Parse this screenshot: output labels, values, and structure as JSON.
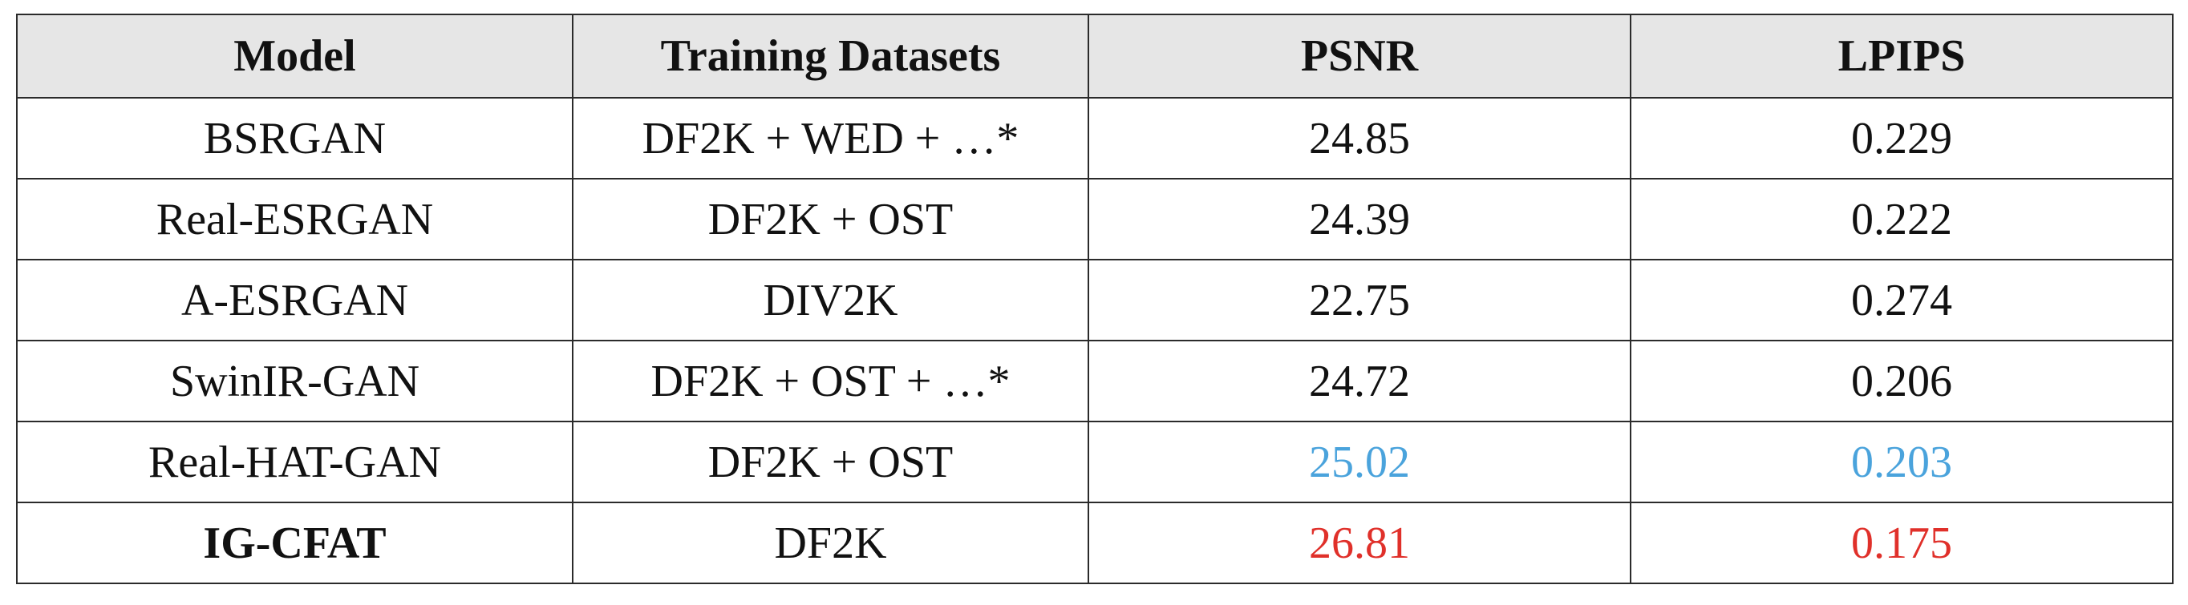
{
  "chart_data": {
    "type": "table",
    "columns": [
      "Model",
      "Training Datasets",
      "PSNR",
      "LPIPS"
    ],
    "rows": [
      {
        "model": "BSRGAN",
        "datasets": "DF2K + WED + …*",
        "psnr": "24.85",
        "lpips": "0.229",
        "highlight": "none"
      },
      {
        "model": "Real-ESRGAN",
        "datasets": "DF2K + OST",
        "psnr": "24.39",
        "lpips": "0.222",
        "highlight": "none"
      },
      {
        "model": "A-ESRGAN",
        "datasets": "DIV2K",
        "psnr": "22.75",
        "lpips": "0.274",
        "highlight": "none"
      },
      {
        "model": "SwinIR-GAN",
        "datasets": "DF2K + OST + …*",
        "psnr": "24.72",
        "lpips": "0.206",
        "highlight": "none"
      },
      {
        "model": "Real-HAT-GAN",
        "datasets": "DF2K + OST",
        "psnr": "25.02",
        "lpips": "0.203",
        "highlight": "second"
      },
      {
        "model": "IG-CFAT",
        "datasets": "DF2K",
        "psnr": "26.81",
        "lpips": "0.175",
        "highlight": "best",
        "model_bold": true
      }
    ],
    "colors": {
      "best": "#e0302a",
      "second": "#4aa3dc",
      "default": "#111111",
      "header_bg": "#e6e6e6"
    }
  }
}
